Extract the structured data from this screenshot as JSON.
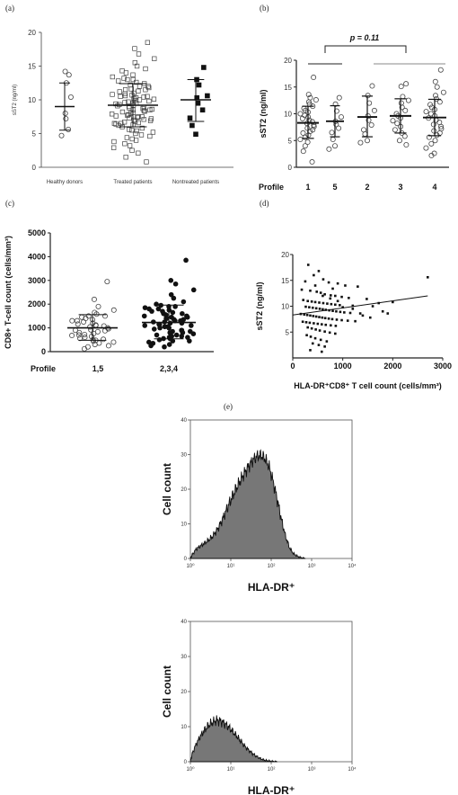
{
  "chart_data": [
    {
      "id": "a",
      "panel_label": "(a)",
      "type": "scatter",
      "ylabel": "sST2 (ng/ml)",
      "ylim": [
        0,
        20
      ],
      "yticks": [
        "0",
        "5",
        "10",
        "15",
        "20"
      ],
      "categories": [
        "Healthy donors",
        "Treated patients",
        "Nontreated patients"
      ],
      "marker_styles": [
        "open-circle",
        "open-square",
        "filled-square"
      ],
      "summary": [
        {
          "mean": 9.0,
          "low": 5.5,
          "high": 12.5
        },
        {
          "mean": 9.2,
          "low": 6.0,
          "high": 12.4
        },
        {
          "mean": 10.0,
          "low": 6.8,
          "high": 13.0
        }
      ],
      "series": [
        {
          "values": [
            13.7,
            14.2,
            12.5,
            10.4,
            8.0,
            7.2,
            5.6,
            4.7
          ]
        },
        {
          "values": [
            18.5,
            17.6,
            16.8,
            16.1,
            15.5,
            15.0,
            14.6,
            14.3,
            14.0,
            13.7,
            13.4,
            13.2,
            13.0,
            12.8,
            12.6,
            12.4,
            12.2,
            12.0,
            11.8,
            11.6,
            11.5,
            11.3,
            11.2,
            11.0,
            10.9,
            10.8,
            10.7,
            10.6,
            10.5,
            10.4,
            10.3,
            10.2,
            10.1,
            10.0,
            9.9,
            9.8,
            9.7,
            9.6,
            9.5,
            9.4,
            9.3,
            9.2,
            9.1,
            9.0,
            8.9,
            8.8,
            8.7,
            8.6,
            8.5,
            8.4,
            8.3,
            8.2,
            8.1,
            8.0,
            7.9,
            7.8,
            7.7,
            7.6,
            7.5,
            7.4,
            7.3,
            7.2,
            7.1,
            7.0,
            6.9,
            6.8,
            6.7,
            6.6,
            6.5,
            6.4,
            6.3,
            6.2,
            6.0,
            5.8,
            5.6,
            5.4,
            5.2,
            5.0,
            4.8,
            4.6,
            4.4,
            4.2,
            4.0,
            3.8,
            3.5,
            3.2,
            2.9,
            2.5,
            2.1,
            1.5,
            0.8,
            10.5,
            9.5,
            8.5,
            7.5,
            11.5,
            12.0,
            13.0,
            6.5,
            5.5
          ]
        },
        {
          "values": [
            14.8,
            13.0,
            12.2,
            10.6,
            10.3,
            9.5,
            8.5,
            7.3,
            6.2,
            4.9
          ]
        }
      ]
    },
    {
      "id": "b",
      "panel_label": "(b)",
      "type": "scatter",
      "ylabel": "sST2 (ng/ml)",
      "ylim": [
        0,
        20
      ],
      "yticks": [
        "0",
        "5",
        "10",
        "15",
        "20"
      ],
      "profile_label": "Profile",
      "categories": [
        "1",
        "5",
        "2",
        "3",
        "4"
      ],
      "annotation": "p = 0.11",
      "summary": [
        {
          "mean": 8.3,
          "low": 5.4,
          "high": 11.4
        },
        {
          "mean": 8.6,
          "low": 5.7,
          "high": 11.5
        },
        {
          "mean": 9.4,
          "low": 5.7,
          "high": 13.3
        },
        {
          "mean": 9.6,
          "low": 6.4,
          "high": 12.8
        },
        {
          "mean": 9.3,
          "low": 5.9,
          "high": 12.7
        }
      ],
      "series": [
        {
          "values": [
            16.8,
            13.6,
            13.0,
            12.6,
            12.2,
            11.8,
            11.4,
            11.0,
            10.6,
            10.3,
            10.0,
            9.7,
            9.4,
            9.1,
            8.8,
            8.5,
            8.2,
            7.9,
            7.6,
            7.3,
            7.0,
            6.7,
            6.4,
            6.0,
            5.6,
            5.2,
            4.7,
            4.0,
            3.0,
            1.0
          ]
        },
        {
          "values": [
            13.0,
            11.8,
            10.5,
            9.4,
            8.6,
            8.0,
            7.3,
            6.5,
            5.2,
            4.0,
            3.4
          ]
        },
        {
          "values": [
            15.2,
            13.4,
            12.0,
            10.6,
            9.6,
            8.8,
            7.9,
            7.0,
            6.2,
            5.0,
            4.6
          ]
        },
        {
          "values": [
            15.6,
            15.1,
            13.2,
            12.5,
            12.0,
            11.2,
            10.6,
            10.0,
            9.6,
            9.2,
            8.7,
            8.2,
            7.6,
            7.0,
            6.4,
            5.8,
            5.0,
            4.2
          ]
        },
        {
          "values": [
            18.2,
            16.0,
            15.0,
            14.0,
            13.4,
            12.8,
            12.2,
            11.7,
            11.2,
            10.8,
            10.4,
            10.0,
            9.6,
            9.2,
            8.8,
            8.4,
            8.0,
            7.6,
            7.2,
            6.8,
            6.4,
            6.0,
            5.6,
            5.0,
            4.4,
            3.6,
            2.6,
            2.2
          ]
        }
      ]
    },
    {
      "id": "c",
      "panel_label": "(c)",
      "type": "scatter",
      "ylabel": "CD8+ T-cell count (cells/mm³)",
      "ylim": [
        0,
        5000
      ],
      "yticks": [
        "0",
        "1000",
        "2000",
        "3000",
        "4000",
        "5000"
      ],
      "profile_label": "Profile",
      "categories": [
        "1,5",
        "2,3,4"
      ],
      "summary": [
        {
          "mean": 1000,
          "low": 480,
          "high": 1560
        },
        {
          "mean": 1230,
          "low": 540,
          "high": 1960
        }
      ],
      "series": [
        {
          "values": [
            2950,
            2200,
            1900,
            1750,
            1650,
            1580,
            1500,
            1450,
            1400,
            1350,
            1300,
            1250,
            1200,
            1160,
            1120,
            1080,
            1040,
            1000,
            960,
            920,
            880,
            840,
            800,
            760,
            720,
            680,
            640,
            600,
            560,
            520,
            480,
            440,
            400,
            360,
            300,
            250,
            200,
            120,
            1100,
            900,
            700,
            500,
            1300,
            1500
          ]
        },
        {
          "values": [
            3850,
            3000,
            2850,
            2600,
            2400,
            2250,
            2100,
            2000,
            1950,
            1900,
            1850,
            1800,
            1750,
            1700,
            1650,
            1600,
            1550,
            1500,
            1450,
            1400,
            1350,
            1300,
            1250,
            1200,
            1150,
            1100,
            1050,
            1000,
            950,
            900,
            850,
            800,
            750,
            700,
            650,
            600,
            550,
            500,
            450,
            400,
            350,
            300,
            250,
            200,
            1200,
            1250,
            1300,
            1100,
            1000,
            900,
            800,
            700,
            600,
            1400,
            1500,
            1600,
            1700,
            1800,
            1900,
            1350,
            1050,
            850,
            650,
            550,
            450,
            1450,
            1150
          ]
        }
      ]
    },
    {
      "id": "d",
      "panel_label": "(d)",
      "type": "scatter",
      "ylabel": "sST2 (ng/ml)",
      "xlabel": "HLA-DR⁺CD8⁺ T cell count (cells/mm³)",
      "xlim": [
        0,
        3000
      ],
      "ylim": [
        0,
        20
      ],
      "xticks": [
        "0",
        "1000",
        "2000",
        "3000"
      ],
      "yticks": [
        "5",
        "10",
        "15",
        "20"
      ],
      "trendline": {
        "x": [
          0,
          2700
        ],
        "y": [
          8.3,
          12.0
        ]
      },
      "points": [
        [
          310,
          18.0
        ],
        [
          520,
          16.8
        ],
        [
          420,
          16.0
        ],
        [
          610,
          15.2
        ],
        [
          250,
          14.8
        ],
        [
          720,
          14.6
        ],
        [
          900,
          14.4
        ],
        [
          1050,
          14.0
        ],
        [
          1300,
          13.8
        ],
        [
          2700,
          15.6
        ],
        [
          180,
          13.2
        ],
        [
          350,
          13.0
        ],
        [
          480,
          12.8
        ],
        [
          560,
          12.6
        ],
        [
          640,
          12.3
        ],
        [
          760,
          12.1
        ],
        [
          850,
          12.0
        ],
        [
          980,
          11.8
        ],
        [
          1120,
          11.6
        ],
        [
          1480,
          11.4
        ],
        [
          210,
          11.2
        ],
        [
          300,
          11.0
        ],
        [
          380,
          10.9
        ],
        [
          450,
          10.8
        ],
        [
          530,
          10.7
        ],
        [
          610,
          10.6
        ],
        [
          690,
          10.5
        ],
        [
          770,
          10.4
        ],
        [
          850,
          10.3
        ],
        [
          940,
          10.2
        ],
        [
          1200,
          10.1
        ],
        [
          1600,
          10.0
        ],
        [
          1720,
          10.6
        ],
        [
          260,
          9.9
        ],
        [
          330,
          9.8
        ],
        [
          400,
          9.7
        ],
        [
          470,
          9.6
        ],
        [
          540,
          9.5
        ],
        [
          600,
          9.4
        ],
        [
          660,
          9.3
        ],
        [
          730,
          9.2
        ],
        [
          800,
          9.1
        ],
        [
          870,
          9.0
        ],
        [
          950,
          8.9
        ],
        [
          1030,
          8.8
        ],
        [
          1150,
          8.7
        ],
        [
          1350,
          8.6
        ],
        [
          160,
          8.5
        ],
        [
          230,
          8.4
        ],
        [
          290,
          8.3
        ],
        [
          350,
          8.2
        ],
        [
          410,
          8.1
        ],
        [
          470,
          8.0
        ],
        [
          530,
          7.9
        ],
        [
          590,
          7.8
        ],
        [
          650,
          7.7
        ],
        [
          720,
          7.6
        ],
        [
          790,
          7.5
        ],
        [
          880,
          7.4
        ],
        [
          980,
          7.3
        ],
        [
          1100,
          7.2
        ],
        [
          1250,
          7.1
        ],
        [
          200,
          7.0
        ],
        [
          270,
          6.9
        ],
        [
          340,
          6.8
        ],
        [
          420,
          6.7
        ],
        [
          500,
          6.6
        ],
        [
          580,
          6.5
        ],
        [
          660,
          6.4
        ],
        [
          760,
          6.3
        ],
        [
          860,
          6.2
        ],
        [
          300,
          5.9
        ],
        [
          380,
          5.7
        ],
        [
          460,
          5.5
        ],
        [
          540,
          5.3
        ],
        [
          640,
          5.1
        ],
        [
          740,
          4.9
        ],
        [
          850,
          4.7
        ],
        [
          280,
          4.4
        ],
        [
          360,
          4.1
        ],
        [
          450,
          3.8
        ],
        [
          560,
          3.5
        ],
        [
          680,
          3.2
        ],
        [
          400,
          2.8
        ],
        [
          520,
          2.5
        ],
        [
          640,
          2.2
        ],
        [
          350,
          1.5
        ],
        [
          580,
          1.2
        ],
        [
          1200,
          9.5
        ],
        [
          1400,
          8.2
        ],
        [
          1550,
          7.8
        ],
        [
          1800,
          9.0
        ],
        [
          2000,
          10.8
        ],
        [
          1900,
          8.6
        ],
        [
          750,
          11.5
        ],
        [
          600,
          12.0
        ],
        [
          900,
          11.0
        ],
        [
          1000,
          9.8
        ],
        [
          450,
          14.0
        ],
        [
          800,
          13.4
        ]
      ]
    },
    {
      "id": "e_top",
      "panel_label": "(e)",
      "type": "area",
      "ylabel": "Cell count",
      "xlabel": "HLA-DR⁺",
      "ylim": [
        0,
        40
      ],
      "yticks": [
        "0",
        "10",
        "20",
        "30",
        "40"
      ],
      "xticks": [
        "10⁰",
        "10¹",
        "10²",
        "10³",
        "10⁴"
      ],
      "x_log_decades": [
        0,
        4
      ],
      "hist": [
        [
          0.0,
          0.0
        ],
        [
          0.05,
          1.2
        ],
        [
          0.15,
          2.8
        ],
        [
          0.25,
          3.6
        ],
        [
          0.35,
          4.4
        ],
        [
          0.45,
          5.3
        ],
        [
          0.55,
          6.4
        ],
        [
          0.65,
          8.0
        ],
        [
          0.75,
          10.2
        ],
        [
          0.85,
          12.8
        ],
        [
          0.95,
          15.6
        ],
        [
          1.05,
          18.2
        ],
        [
          1.15,
          20.6
        ],
        [
          1.25,
          22.8
        ],
        [
          1.35,
          24.9
        ],
        [
          1.45,
          26.8
        ],
        [
          1.55,
          28.4
        ],
        [
          1.65,
          29.5
        ],
        [
          1.75,
          29.8
        ],
        [
          1.85,
          28.8
        ],
        [
          1.95,
          26.4
        ],
        [
          2.05,
          22.2
        ],
        [
          2.15,
          17.0
        ],
        [
          2.25,
          11.4
        ],
        [
          2.35,
          6.6
        ],
        [
          2.45,
          3.2
        ],
        [
          2.55,
          1.4
        ],
        [
          2.65,
          0.6
        ],
        [
          2.75,
          0.2
        ],
        [
          2.85,
          0.0
        ]
      ]
    },
    {
      "id": "e_bottom",
      "type": "area",
      "ylabel": "Cell count",
      "xlabel": "HLA-DR⁺",
      "ylim": [
        0,
        40
      ],
      "yticks": [
        "0",
        "10",
        "20",
        "30",
        "40"
      ],
      "xticks": [
        "10⁰",
        "10¹",
        "10²",
        "10³",
        "10⁴"
      ],
      "x_log_decades": [
        0,
        4
      ],
      "hist": [
        [
          0.0,
          0.0
        ],
        [
          0.05,
          2.5
        ],
        [
          0.15,
          5.2
        ],
        [
          0.25,
          7.3
        ],
        [
          0.35,
          9.0
        ],
        [
          0.45,
          10.4
        ],
        [
          0.55,
          11.2
        ],
        [
          0.65,
          11.8
        ],
        [
          0.75,
          11.6
        ],
        [
          0.85,
          10.8
        ],
        [
          0.95,
          9.8
        ],
        [
          1.05,
          8.6
        ],
        [
          1.15,
          7.2
        ],
        [
          1.25,
          5.8
        ],
        [
          1.35,
          4.4
        ],
        [
          1.45,
          3.2
        ],
        [
          1.55,
          2.2
        ],
        [
          1.65,
          1.4
        ],
        [
          1.75,
          0.8
        ],
        [
          1.85,
          0.4
        ],
        [
          1.95,
          0.2
        ],
        [
          2.05,
          0.1
        ],
        [
          2.15,
          0.0
        ]
      ]
    }
  ]
}
